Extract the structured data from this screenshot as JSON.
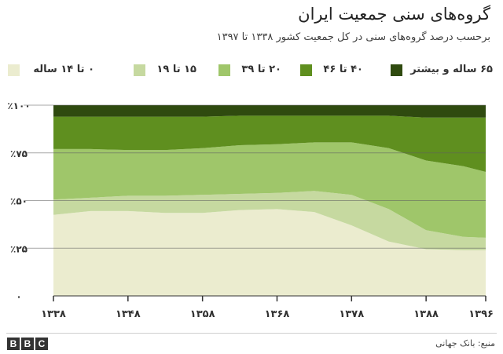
{
  "header": {
    "title": "گروه‌های سنی جمعیت ایران",
    "subtitle": "برحسب درصد گروه‌های سنی در کل جمعیت کشور ۱۳۳۸ تا ۱۳۹۷"
  },
  "legend": [
    {
      "label": "۰ تا ۱۴ ساله",
      "color": "#ebeccf"
    },
    {
      "label": "۱۵ تا ۱۹",
      "color": "#c6d9a0"
    },
    {
      "label": "۲۰ تا ۳۹",
      "color": "#9fc66a"
    },
    {
      "label": "۴۰ تا ۴۶",
      "color": "#5f8f1f"
    },
    {
      "label": "۶۵ ساله و بیشتر",
      "color": "#2f4a0f"
    }
  ],
  "chart_data": {
    "type": "area",
    "stacked": true,
    "x": [
      1338,
      1343,
      1348,
      1353,
      1358,
      1363,
      1368,
      1373,
      1378,
      1383,
      1388,
      1393,
      1396
    ],
    "x_tick_labels": [
      "۱۳۳۸",
      "۱۳۴۸",
      "۱۳۵۸",
      "۱۳۶۸",
      "۱۳۷۸",
      "۱۳۸۸",
      "۱۳۹۶"
    ],
    "x_tick_values": [
      1338,
      1348,
      1358,
      1368,
      1378,
      1388,
      1396
    ],
    "y_tick_labels": [
      "۰",
      "٪۲۵",
      "٪۵۰",
      "٪۷۵",
      "٪۱۰۰"
    ],
    "y_tick_values": [
      0,
      25,
      50,
      75,
      100
    ],
    "ylim": [
      0,
      100
    ],
    "series": [
      {
        "name": "۰ تا ۱۴ ساله",
        "values": [
          42.5,
          44.5,
          44.5,
          43.5,
          43.5,
          45.0,
          45.5,
          44.0,
          37.0,
          28.5,
          24.5,
          24.0,
          24.0
        ]
      },
      {
        "name": "۱۵ تا ۱۹",
        "values": [
          8.0,
          7.0,
          8.0,
          9.0,
          9.5,
          8.5,
          8.5,
          11.0,
          16.0,
          17.0,
          10.0,
          7.0,
          6.5
        ]
      },
      {
        "name": "۲۰ تا ۳۹",
        "values": [
          26.5,
          25.5,
          24.0,
          24.0,
          24.5,
          25.5,
          25.5,
          25.5,
          27.5,
          32.0,
          36.5,
          37.0,
          34.5
        ]
      },
      {
        "name": "۴۰ تا ۴۶",
        "values": [
          17.0,
          17.0,
          17.5,
          17.5,
          16.5,
          15.5,
          15.0,
          14.0,
          14.0,
          17.0,
          22.5,
          25.5,
          28.5
        ]
      },
      {
        "name": "۶۵ ساله و بیشتر",
        "values": [
          6.0,
          6.0,
          6.0,
          6.0,
          6.0,
          5.5,
          5.5,
          5.5,
          5.5,
          5.5,
          6.5,
          6.5,
          6.5
        ]
      }
    ],
    "grid": true,
    "legend_position": "top"
  },
  "footer": {
    "logo_letters": [
      "B",
      "B",
      "C"
    ],
    "source": "منبع: بانک جهانی"
  }
}
